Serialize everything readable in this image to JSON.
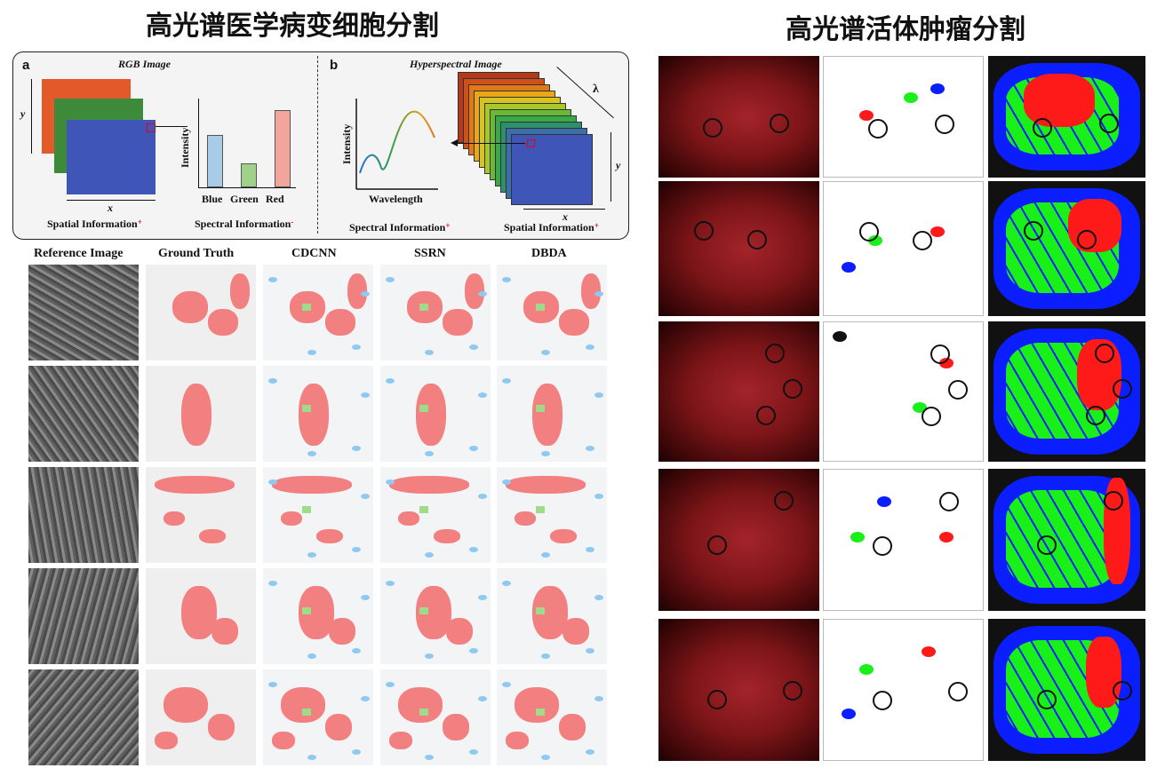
{
  "left_title": "高光谱医学病变细胞分割",
  "right_title": "高光谱活体肿瘤分割",
  "panel_a": {
    "letter": "a",
    "title": "RGB Image",
    "y_axis": "y",
    "x_axis": "x",
    "spatial_label": "Spatial Information",
    "spatial_sign": "+",
    "spectral_label": "Spectral Information",
    "spectral_sign": "-",
    "intensity_label": "Intensity",
    "bars": [
      "Blue",
      "Green",
      "Red"
    ],
    "bar_levels": [
      0.62,
      0.28,
      0.92
    ],
    "bar_colors": [
      "#a8cbe6",
      "#9fd18a",
      "#f2a59a"
    ]
  },
  "panel_b": {
    "letter": "b",
    "title": "Hyperspectral Image",
    "lambda": "λ",
    "y_axis": "y",
    "x_axis": "x",
    "intensity_label": "Intensity",
    "wavelength_label": "Wavelength",
    "spectral_label": "Spectral Information",
    "spectral_sign": "+",
    "spatial_label": "Spatial Information",
    "spatial_sign": "+"
  },
  "grid_headers": [
    "Reference Image",
    "Ground Truth",
    "CDCNN",
    "SSRN",
    "DBDA"
  ],
  "colors": {
    "lesion": "#f28080",
    "confusion_blue": "#8ec9f0",
    "confusion_green": "#9edc8a",
    "tumor_red": "#ff1a1a",
    "vessel_blue": "#0a1eff",
    "normal_green": "#19f019"
  }
}
